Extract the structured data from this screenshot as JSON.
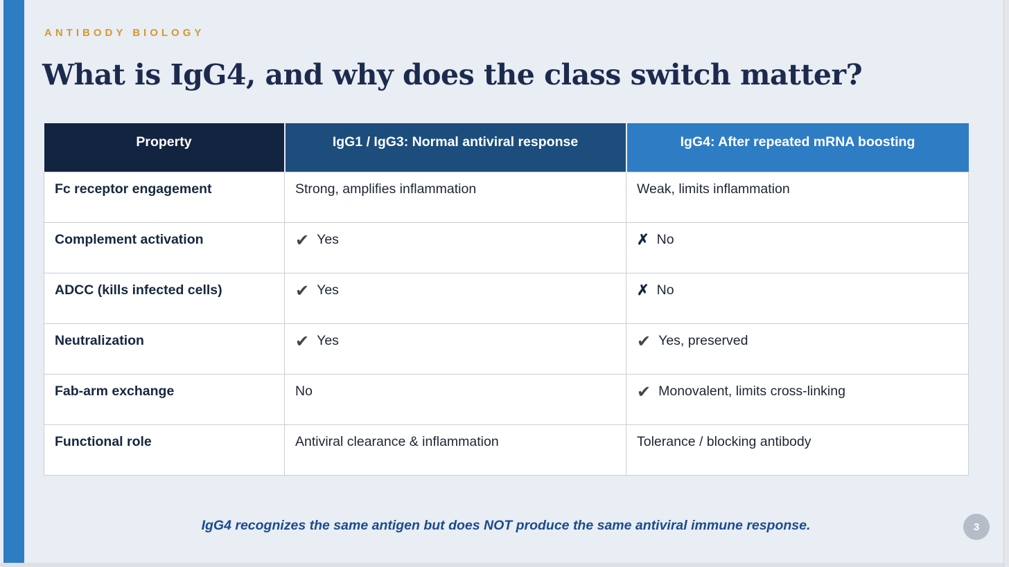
{
  "page": {
    "slide_bg_color": "#e9edf4",
    "accent_bar_color": "#2e7dc2",
    "page_number": "3"
  },
  "header": {
    "eyebrow": "ANTIBODY BIOLOGY",
    "eyebrow_color": "#d49a2a",
    "title": "What is IgG4, and why does the class switch matter?",
    "title_color": "#1c2b4d"
  },
  "table": {
    "columns": [
      {
        "label": "Property",
        "bg": "#132440"
      },
      {
        "label": "IgG1 / IgG3: Normal antiviral response",
        "bg": "#1c4d7c"
      },
      {
        "label": "IgG4: After repeated mRNA boosting",
        "bg": "#2e7cc4"
      }
    ],
    "icons": {
      "check": "✔",
      "cross": "✗"
    },
    "icon_colors": {
      "check": "#42474d",
      "cross": "#15253e"
    },
    "rows": [
      {
        "property": "Fc receptor engagement",
        "igg1": {
          "icon": null,
          "text": "Strong, amplifies inflammation"
        },
        "igg4": {
          "icon": null,
          "text": "Weak, limits inflammation"
        }
      },
      {
        "property": "Complement activation",
        "igg1": {
          "icon": "check",
          "text": "Yes"
        },
        "igg4": {
          "icon": "cross",
          "text": "No"
        }
      },
      {
        "property": "ADCC (kills infected cells)",
        "igg1": {
          "icon": "check",
          "text": "Yes"
        },
        "igg4": {
          "icon": "cross",
          "text": "No"
        }
      },
      {
        "property": "Neutralization",
        "igg1": {
          "icon": "check",
          "text": "Yes"
        },
        "igg4": {
          "icon": "check",
          "text": "Yes, preserved"
        }
      },
      {
        "property": "Fab-arm exchange",
        "igg1": {
          "icon": null,
          "text": "No"
        },
        "igg4": {
          "icon": "check",
          "text": "Monovalent, limits cross-linking"
        }
      },
      {
        "property": "Functional role",
        "igg1": {
          "icon": null,
          "text": "Antiviral clearance & inflammation"
        },
        "igg4": {
          "icon": null,
          "text": "Tolerance / blocking antibody"
        }
      }
    ]
  },
  "footer": {
    "text": "IgG4 recognizes the same antigen but does NOT produce the same antiviral immune response.",
    "color": "#1b4b8d"
  }
}
